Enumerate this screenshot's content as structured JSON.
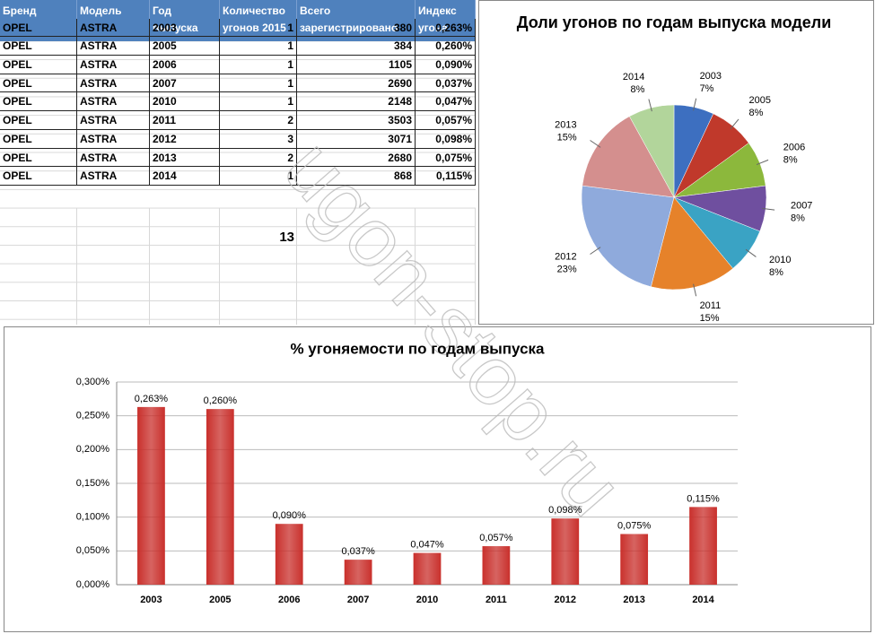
{
  "table": {
    "headers": [
      "Бренд",
      "Модель",
      "Год выпуска",
      "Количество угонов 2015",
      "Всего зарегистрировано",
      "Индекс угона"
    ],
    "rows": [
      [
        "OPEL",
        "ASTRA",
        2003,
        1,
        380,
        "0,263%"
      ],
      [
        "OPEL",
        "ASTRA",
        2005,
        1,
        384,
        "0,260%"
      ],
      [
        "OPEL",
        "ASTRA",
        2006,
        1,
        1105,
        "0,090%"
      ],
      [
        "OPEL",
        "ASTRA",
        2007,
        1,
        2690,
        "0,037%"
      ],
      [
        "OPEL",
        "ASTRA",
        2010,
        1,
        2148,
        "0,047%"
      ],
      [
        "OPEL",
        "ASTRA",
        2011,
        2,
        3503,
        "0,057%"
      ],
      [
        "OPEL",
        "ASTRA",
        2012,
        3,
        3071,
        "0,098%"
      ],
      [
        "OPEL",
        "ASTRA",
        2013,
        2,
        2680,
        "0,075%"
      ],
      [
        "OPEL",
        "ASTRA",
        2014,
        1,
        868,
        "0,115%"
      ]
    ],
    "total": 13
  },
  "chart_data": [
    {
      "type": "pie",
      "title": "Доли угонов  по годам  выпуска модели",
      "categories": [
        "2003",
        "2005",
        "2006",
        "2007",
        "2010",
        "2011",
        "2012",
        "2013",
        "2014"
      ],
      "values": [
        7,
        8,
        8,
        8,
        8,
        15,
        23,
        15,
        8
      ],
      "value_labels": [
        "7%",
        "8%",
        "8%",
        "8%",
        "8%",
        "15%",
        "23%",
        "15%",
        "8%"
      ],
      "colors": [
        "#3d6fc0",
        "#c0392b",
        "#8cb83c",
        "#6f4f9f",
        "#3aa3c4",
        "#e6822a",
        "#8faadc",
        "#d48f8e",
        "#b2d59b"
      ]
    },
    {
      "type": "bar",
      "title": "% угоняемости  по годам  выпуска",
      "categories": [
        "2003",
        "2005",
        "2006",
        "2007",
        "2010",
        "2011",
        "2012",
        "2013",
        "2014"
      ],
      "values": [
        0.263,
        0.26,
        0.09,
        0.037,
        0.047,
        0.057,
        0.098,
        0.075,
        0.115
      ],
      "value_labels": [
        "0,263%",
        "0,260%",
        "0,090%",
        "0,037%",
        "0,047%",
        "0,057%",
        "0,098%",
        "0,075%",
        "0,115%"
      ],
      "color": "#c9302c",
      "ylim": [
        0,
        0.3
      ],
      "yticks": [
        {
          "value": 0,
          "label": "0,000%"
        },
        {
          "value": 0.05,
          "label": "0,050%"
        },
        {
          "value": 0.1,
          "label": "0,100%"
        },
        {
          "value": 0.15,
          "label": "0,150%"
        },
        {
          "value": 0.2,
          "label": "0,200%"
        },
        {
          "value": 0.25,
          "label": "0,250%"
        },
        {
          "value": 0.3,
          "label": "0,300%"
        }
      ],
      "grid": true
    }
  ],
  "watermark": "ugon-stop.ru"
}
